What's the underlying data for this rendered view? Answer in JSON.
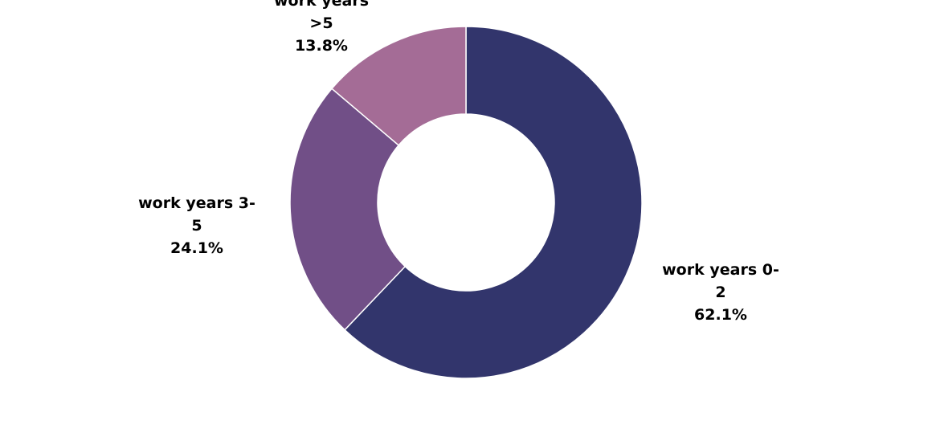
{
  "chart_data": {
    "type": "pie",
    "donut": true,
    "title": "",
    "slices": [
      {
        "label_lines": [
          "work years 0-",
          "2"
        ],
        "percent_label": "62.1%",
        "value": 62.1,
        "color": "#32356c"
      },
      {
        "label_lines": [
          "work years 3-",
          "5"
        ],
        "percent_label": "24.1%",
        "value": 24.1,
        "color": "#714f87"
      },
      {
        "label_lines": [
          "work years",
          ">5"
        ],
        "percent_label": "13.8%",
        "value": 13.8,
        "color": "#a46c96"
      }
    ],
    "legend": "none",
    "label_position": "outside"
  }
}
